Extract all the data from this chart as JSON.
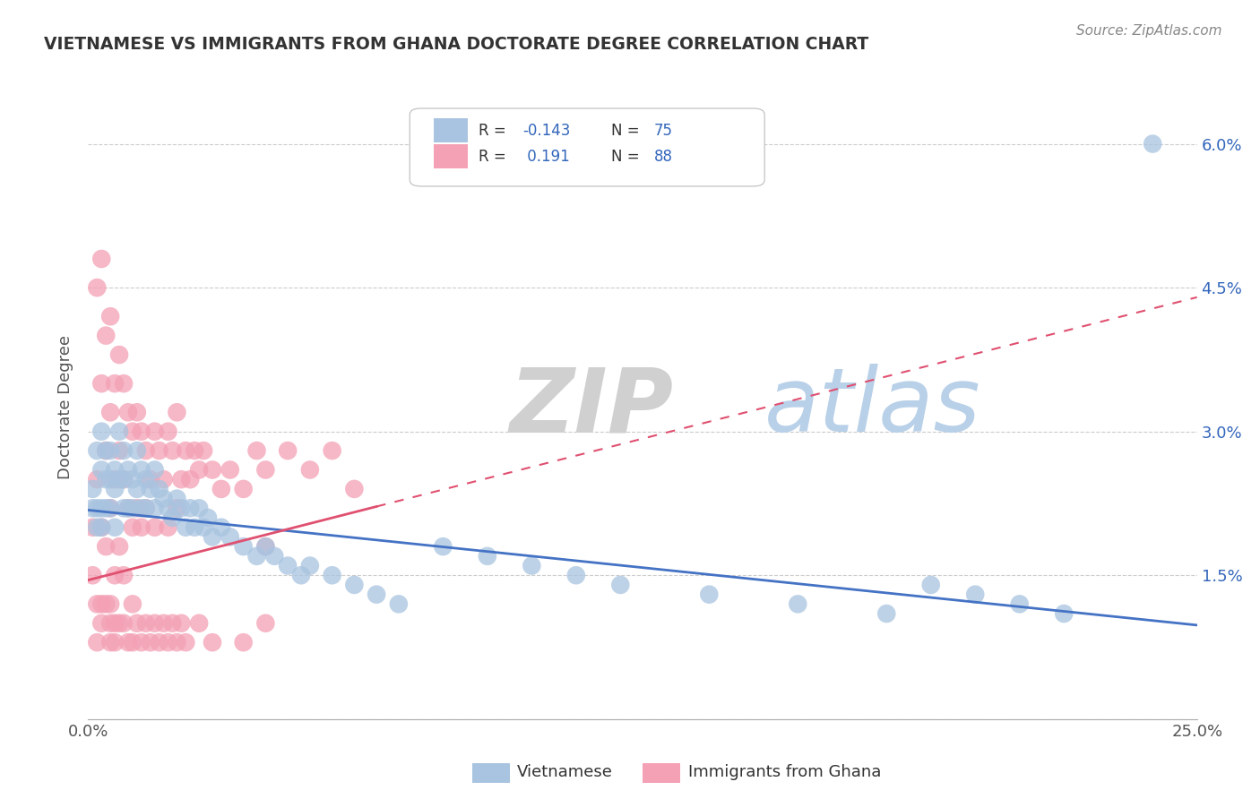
{
  "title": "VIETNAMESE VS IMMIGRANTS FROM GHANA DOCTORATE DEGREE CORRELATION CHART",
  "source": "Source: ZipAtlas.com",
  "ylabel": "Doctorate Degree",
  "xlim": [
    0.0,
    0.25
  ],
  "ylim": [
    0.0,
    0.065
  ],
  "color_vietnamese": "#a8c4e0",
  "color_ghana": "#f4a0b5",
  "color_trend_vietnamese": "#4472c4",
  "color_trend_ghana": "#e05070",
  "background_color": "#ffffff",
  "grid_color": "#cccccc",
  "r_vietnamese": -0.143,
  "n_vietnamese": 75,
  "r_ghana": 0.191,
  "n_ghana": 88,
  "vietnamese_x": [
    0.001,
    0.001,
    0.002,
    0.002,
    0.002,
    0.003,
    0.003,
    0.003,
    0.003,
    0.004,
    0.004,
    0.004,
    0.005,
    0.005,
    0.005,
    0.006,
    0.006,
    0.006,
    0.007,
    0.007,
    0.008,
    0.008,
    0.008,
    0.009,
    0.009,
    0.01,
    0.01,
    0.011,
    0.011,
    0.012,
    0.012,
    0.013,
    0.013,
    0.014,
    0.015,
    0.015,
    0.016,
    0.017,
    0.018,
    0.019,
    0.02,
    0.021,
    0.022,
    0.023,
    0.024,
    0.025,
    0.026,
    0.027,
    0.028,
    0.03,
    0.032,
    0.035,
    0.038,
    0.04,
    0.042,
    0.045,
    0.048,
    0.05,
    0.055,
    0.06,
    0.065,
    0.07,
    0.08,
    0.09,
    0.1,
    0.11,
    0.12,
    0.14,
    0.16,
    0.18,
    0.19,
    0.2,
    0.21,
    0.22,
    0.24
  ],
  "vietnamese_y": [
    0.024,
    0.022,
    0.028,
    0.022,
    0.02,
    0.03,
    0.026,
    0.022,
    0.02,
    0.028,
    0.025,
    0.022,
    0.028,
    0.025,
    0.022,
    0.026,
    0.024,
    0.02,
    0.03,
    0.025,
    0.028,
    0.025,
    0.022,
    0.026,
    0.022,
    0.025,
    0.022,
    0.028,
    0.024,
    0.026,
    0.022,
    0.025,
    0.022,
    0.024,
    0.026,
    0.022,
    0.024,
    0.023,
    0.022,
    0.021,
    0.023,
    0.022,
    0.02,
    0.022,
    0.02,
    0.022,
    0.02,
    0.021,
    0.019,
    0.02,
    0.019,
    0.018,
    0.017,
    0.018,
    0.017,
    0.016,
    0.015,
    0.016,
    0.015,
    0.014,
    0.013,
    0.012,
    0.018,
    0.017,
    0.016,
    0.015,
    0.014,
    0.013,
    0.012,
    0.011,
    0.014,
    0.013,
    0.012,
    0.011,
    0.06
  ],
  "ghana_x": [
    0.001,
    0.001,
    0.002,
    0.002,
    0.002,
    0.003,
    0.003,
    0.003,
    0.003,
    0.004,
    0.004,
    0.004,
    0.005,
    0.005,
    0.005,
    0.005,
    0.006,
    0.006,
    0.006,
    0.007,
    0.007,
    0.007,
    0.008,
    0.008,
    0.008,
    0.009,
    0.009,
    0.01,
    0.01,
    0.011,
    0.011,
    0.012,
    0.012,
    0.013,
    0.013,
    0.014,
    0.015,
    0.015,
    0.016,
    0.017,
    0.018,
    0.018,
    0.019,
    0.02,
    0.02,
    0.021,
    0.022,
    0.023,
    0.024,
    0.025,
    0.026,
    0.028,
    0.03,
    0.032,
    0.035,
    0.038,
    0.04,
    0.04,
    0.045,
    0.05,
    0.055,
    0.06,
    0.002,
    0.003,
    0.004,
    0.005,
    0.005,
    0.006,
    0.006,
    0.007,
    0.008,
    0.009,
    0.01,
    0.01,
    0.011,
    0.012,
    0.013,
    0.014,
    0.015,
    0.016,
    0.017,
    0.018,
    0.019,
    0.02,
    0.021,
    0.022,
    0.025,
    0.028,
    0.035,
    0.04
  ],
  "ghana_y": [
    0.02,
    0.015,
    0.045,
    0.025,
    0.012,
    0.048,
    0.035,
    0.02,
    0.012,
    0.04,
    0.028,
    0.018,
    0.042,
    0.032,
    0.022,
    0.012,
    0.035,
    0.025,
    0.015,
    0.038,
    0.028,
    0.018,
    0.035,
    0.025,
    0.015,
    0.032,
    0.022,
    0.03,
    0.02,
    0.032,
    0.022,
    0.03,
    0.02,
    0.028,
    0.022,
    0.025,
    0.03,
    0.02,
    0.028,
    0.025,
    0.03,
    0.02,
    0.028,
    0.032,
    0.022,
    0.025,
    0.028,
    0.025,
    0.028,
    0.026,
    0.028,
    0.026,
    0.024,
    0.026,
    0.024,
    0.028,
    0.026,
    0.018,
    0.028,
    0.026,
    0.028,
    0.024,
    0.008,
    0.01,
    0.012,
    0.01,
    0.008,
    0.01,
    0.008,
    0.01,
    0.01,
    0.008,
    0.012,
    0.008,
    0.01,
    0.008,
    0.01,
    0.008,
    0.01,
    0.008,
    0.01,
    0.008,
    0.01,
    0.008,
    0.01,
    0.008,
    0.01,
    0.008,
    0.008,
    0.01
  ],
  "viet_trend_y0": 0.0218,
  "viet_trend_y1": 0.0098,
  "ghana_trend_y0": 0.0145,
  "ghana_trend_y1": 0.044
}
